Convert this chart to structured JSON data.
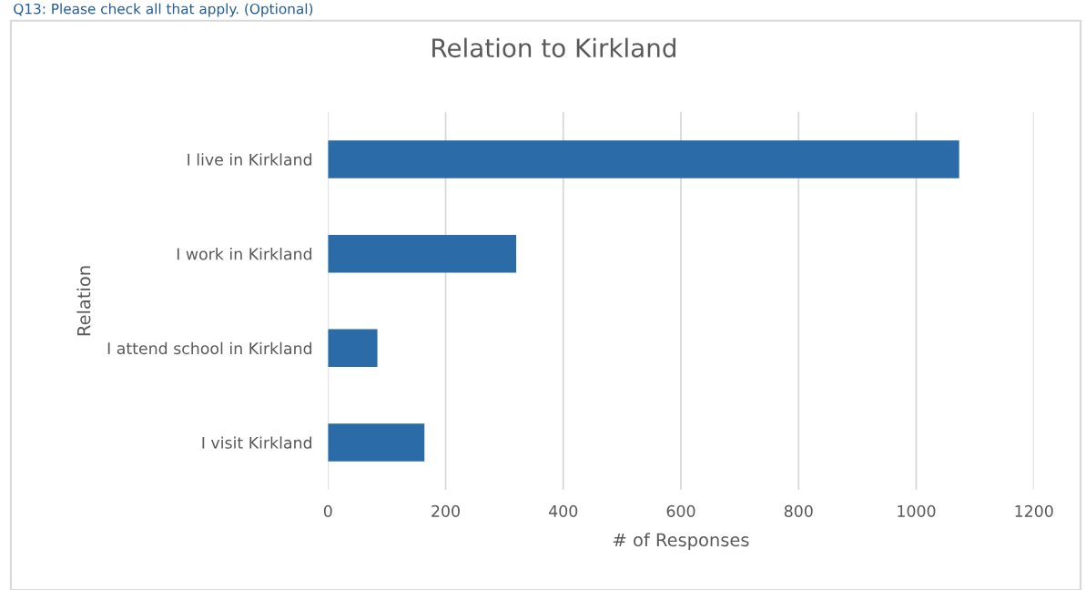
{
  "chart_data": {
    "type": "bar",
    "orientation": "horizontal",
    "title": "Relation to Kirkland",
    "xlabel": "# of Responses",
    "ylabel": "Relation",
    "annotations": [
      "Q13: Please check all that apply. (Optional)"
    ],
    "categories": [
      "I live in Kirkland",
      "I work in Kirkland",
      "I attend school in Kirkland",
      "I visit Kirkland"
    ],
    "values": [
      1073,
      320,
      84,
      164
    ],
    "color": "#2b6ca8",
    "xlim": [
      0,
      1200
    ],
    "xticks": [
      0,
      200,
      400,
      600,
      800,
      1000,
      1200
    ],
    "grid": "x",
    "legend": false
  }
}
